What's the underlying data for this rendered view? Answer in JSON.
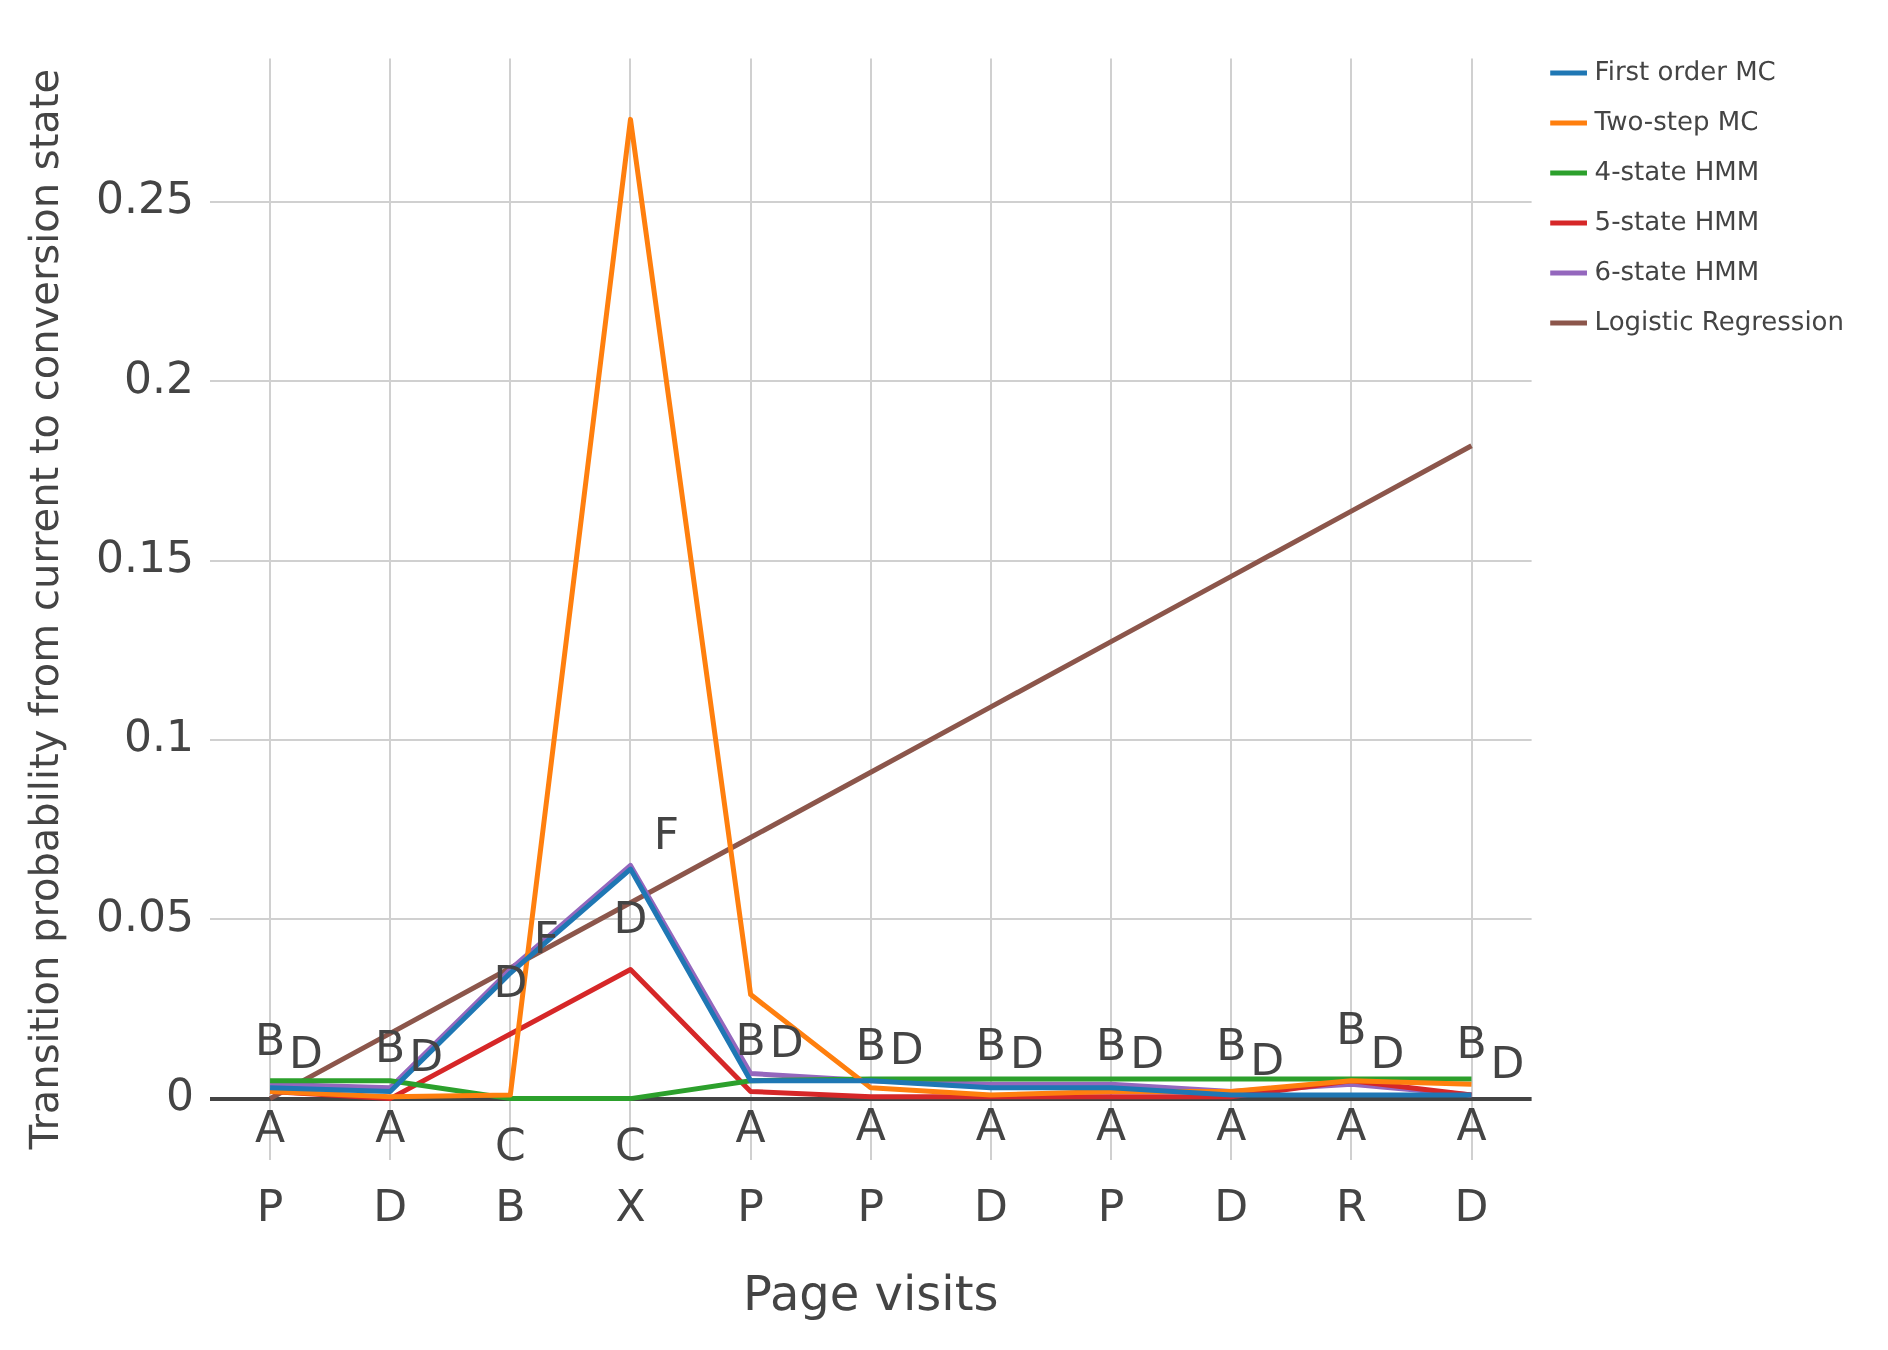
{
  "chart_data": {
    "type": "line",
    "xlabel": "Page visits",
    "ylabel": "Transition probability from current to conversion state",
    "categories": [
      "P",
      "D",
      "B",
      "X",
      "P",
      "P",
      "D",
      "P",
      "D",
      "R",
      "D"
    ],
    "series": [
      {
        "name": "First order MC",
        "color": "#1f77b4",
        "values": [
          0.003,
          0.002,
          0.035,
          0.064,
          0.005,
          0.005,
          0.003,
          0.003,
          0.001,
          0.001,
          0.001
        ]
      },
      {
        "name": "Two-step MC",
        "color": "#ff7f0e",
        "values": [
          0.002,
          0.0005,
          0.001,
          0.273,
          0.029,
          0.003,
          0.001,
          0.002,
          0.002,
          0.005,
          0.004
        ]
      },
      {
        "name": "4-state HMM",
        "color": "#2ca02c",
        "values": [
          0.005,
          0.005,
          0,
          0,
          0.005,
          0.0055,
          0.0055,
          0.0055,
          0.0055,
          0.0055,
          0.0055
        ],
        "value_labels": [
          "A",
          "A",
          "C",
          "C",
          "A",
          "A",
          "A",
          "A",
          "A",
          "A",
          "A"
        ]
      },
      {
        "name": "5-state HMM",
        "color": "#d62728",
        "values": [
          0.002,
          0,
          0.018,
          0.036,
          0.002,
          0.0005,
          0.0005,
          0.0005,
          0.0005,
          0.005,
          0.001
        ],
        "value_labels": [
          "B",
          "B",
          "D",
          "D",
          "B",
          "B",
          "B",
          "B",
          "B",
          "B",
          "B"
        ]
      },
      {
        "name": "6-state HMM",
        "color": "#9467bd",
        "values": [
          0.004,
          0.003,
          0.036,
          0.065,
          0.007,
          0.005,
          0.004,
          0.004,
          0.002,
          0.004,
          0.001
        ],
        "value_labels": [
          "D",
          "D",
          "F",
          "F",
          "D",
          "D",
          "D",
          "D",
          "D",
          "D",
          "D"
        ]
      },
      {
        "name": "Logistic Regression",
        "color": "#8c564b",
        "values": [
          0,
          0.0182,
          0.0364,
          0.0546,
          0.0728,
          0.091,
          0.1092,
          0.1274,
          0.1456,
          0.1638,
          0.182
        ]
      }
    ],
    "ylim": [
      -0.017,
      0.29
    ],
    "yticks": [
      0,
      0.05,
      0.1,
      0.15,
      0.2,
      0.25
    ],
    "grid": true,
    "legend": "top right",
    "marker": "none",
    "line_style": "solid"
  }
}
